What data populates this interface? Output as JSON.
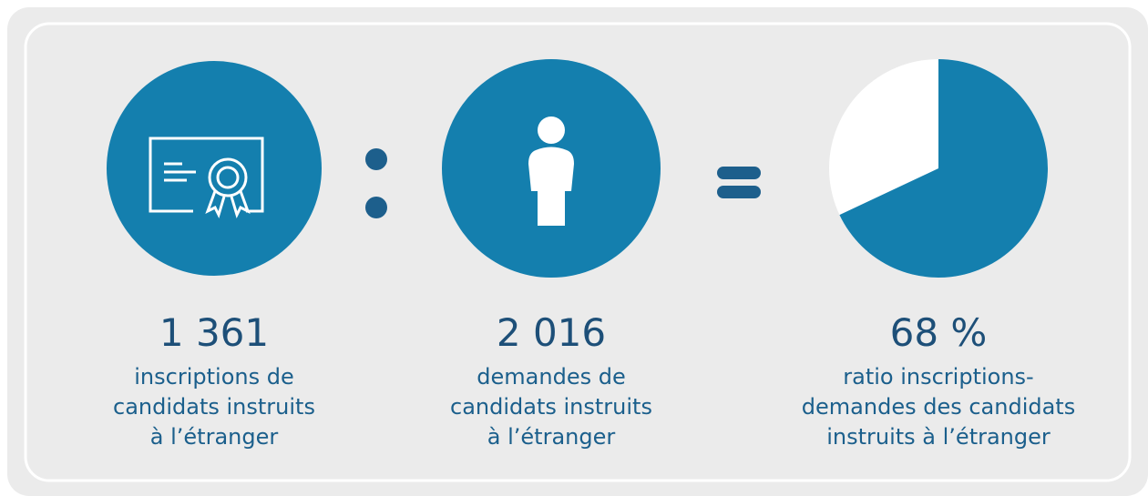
{
  "items": [
    {
      "value": "1 361",
      "label": [
        "inscriptions de",
        "candidats instruits",
        "à l’étranger"
      ]
    },
    {
      "value": "2 016",
      "label": [
        "demandes de",
        "candidats instruits",
        "à l’étranger"
      ]
    },
    {
      "value": "68 %",
      "label": [
        "ratio inscriptions-",
        "demandes des candidats",
        "instruits à l’étranger"
      ]
    }
  ],
  "pie": {
    "value": 68,
    "color": "#147fae"
  }
}
